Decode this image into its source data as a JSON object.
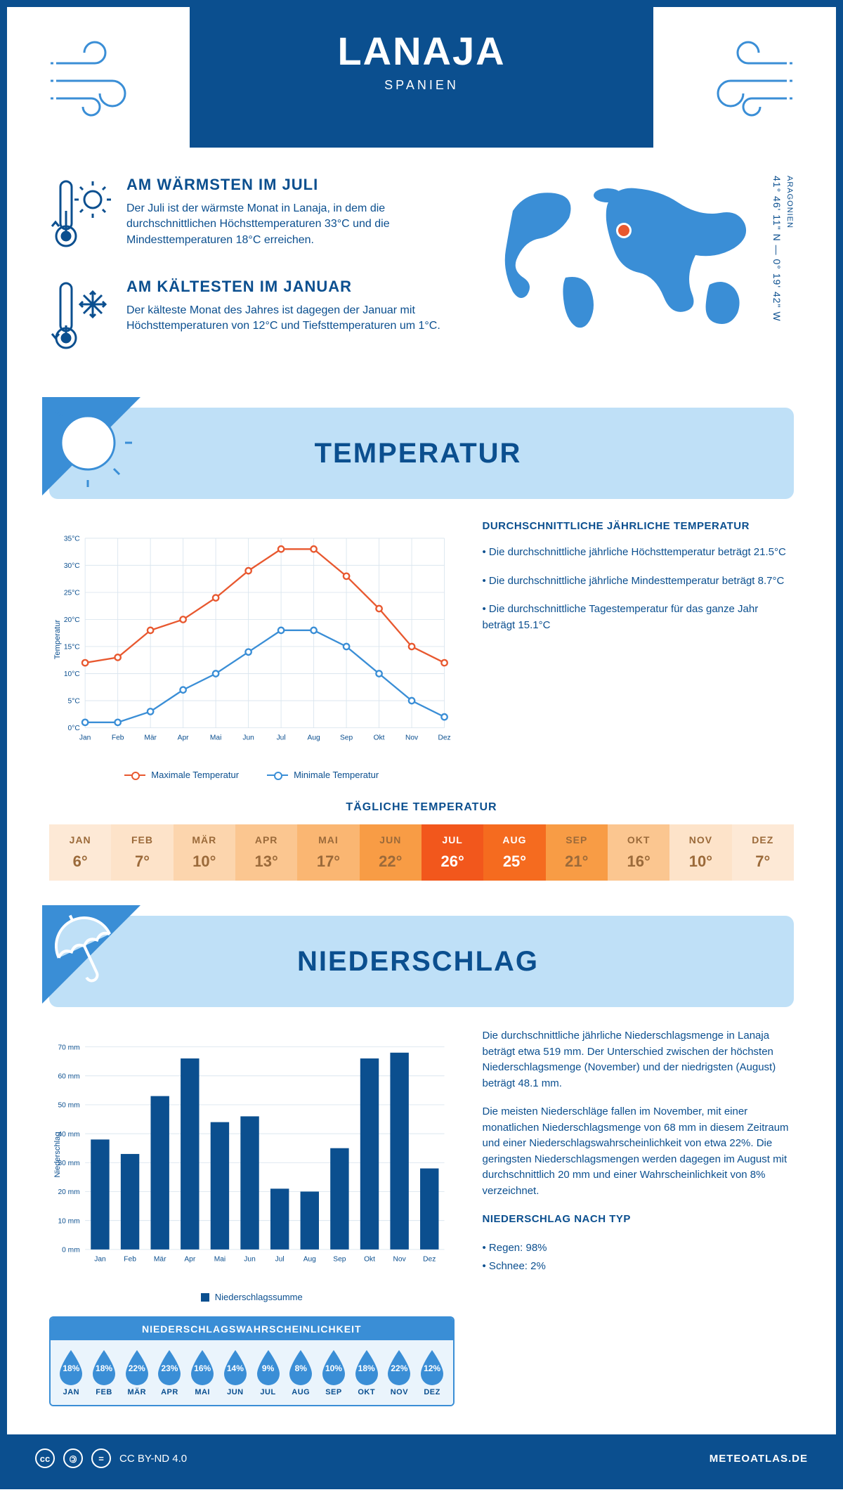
{
  "header": {
    "title": "LANAJA",
    "subtitle": "SPANIEN"
  },
  "intro": {
    "warm": {
      "title": "AM WÄRMSTEN IM JULI",
      "text": "Der Juli ist der wärmste Monat in Lanaja, in dem die durchschnittlichen Höchsttemperaturen 33°C und die Mindesttemperaturen 18°C erreichen."
    },
    "cold": {
      "title": "AM KÄLTESTEN IM JANUAR",
      "text": "Der kälteste Monat des Jahres ist dagegen der Januar mit Höchsttemperaturen von 12°C und Tiefsttemperaturen um 1°C."
    },
    "coords": "41° 46' 11\" N — 0° 19' 42\" W",
    "region": "ARAGONIEN"
  },
  "temperature": {
    "banner_title": "TEMPERATUR",
    "side_title": "DURCHSCHNITTLICHE JÄHRLICHE TEMPERATUR",
    "side_items": [
      "• Die durchschnittliche jährliche Höchsttemperatur beträgt 21.5°C",
      "• Die durchschnittliche jährliche Mindesttemperatur beträgt 8.7°C",
      "• Die durchschnittliche Tagestemperatur für das ganze Jahr beträgt 15.1°C"
    ],
    "chart": {
      "months": [
        "Jan",
        "Feb",
        "Mär",
        "Apr",
        "Mai",
        "Jun",
        "Jul",
        "Aug",
        "Sep",
        "Okt",
        "Nov",
        "Dez"
      ],
      "max": [
        12,
        13,
        18,
        20,
        24,
        29,
        33,
        33,
        28,
        22,
        15,
        12
      ],
      "min": [
        1,
        1,
        3,
        7,
        10,
        14,
        18,
        18,
        15,
        10,
        5,
        2
      ],
      "y_ticks": [
        0,
        5,
        10,
        15,
        20,
        25,
        30,
        35
      ],
      "ylabel": "Temperatur",
      "max_color": "#e8582f",
      "min_color": "#3a8ed6",
      "grid_color": "#dbe6ef",
      "point_fill": "#ffffff"
    },
    "legend_max": "Maximale Temperatur",
    "legend_min": "Minimale Temperatur",
    "daily_title": "TÄGLICHE TEMPERATUR",
    "daily": {
      "months": [
        "JAN",
        "FEB",
        "MÄR",
        "APR",
        "MAI",
        "JUN",
        "JUL",
        "AUG",
        "SEP",
        "OKT",
        "NOV",
        "DEZ"
      ],
      "values": [
        "6°",
        "7°",
        "10°",
        "13°",
        "17°",
        "22°",
        "26°",
        "25°",
        "21°",
        "16°",
        "10°",
        "7°"
      ],
      "bg": [
        "#fde9d6",
        "#fde3c9",
        "#fcd5ad",
        "#fbc690",
        "#fab672",
        "#f89c45",
        "#f2571c",
        "#f56b1f",
        "#f89c45",
        "#fbc690",
        "#fde3c9",
        "#fde9d6"
      ],
      "fg": [
        "#9b6a3a",
        "#9b6a3a",
        "#9b6a3a",
        "#9b6a3a",
        "#9b6a3a",
        "#9b6a3a",
        "#ffffff",
        "#ffffff",
        "#9b6a3a",
        "#9b6a3a",
        "#9b6a3a",
        "#9b6a3a"
      ]
    }
  },
  "precipitation": {
    "banner_title": "NIEDERSCHLAG",
    "chart": {
      "months": [
        "Jan",
        "Feb",
        "Mär",
        "Apr",
        "Mai",
        "Jun",
        "Jul",
        "Aug",
        "Sep",
        "Okt",
        "Nov",
        "Dez"
      ],
      "values": [
        38,
        33,
        53,
        66,
        44,
        46,
        21,
        20,
        35,
        66,
        68,
        28
      ],
      "y_ticks": [
        0,
        10,
        20,
        30,
        40,
        50,
        60,
        70
      ],
      "ylabel": "Niederschlag",
      "bar_color": "#0b4f8f",
      "grid_color": "#dbe6ef",
      "legend": "Niederschlagssumme"
    },
    "text1": "Die durchschnittliche jährliche Niederschlagsmenge in Lanaja beträgt etwa 519 mm. Der Unterschied zwischen der höchsten Niederschlagsmenge (November) und der niedrigsten (August) beträgt 48.1 mm.",
    "text2": "Die meisten Niederschläge fallen im November, mit einer monatlichen Niederschlagsmenge von 68 mm in diesem Zeitraum und einer Niederschlagswahrscheinlichkeit von etwa 22%. Die geringsten Niederschlagsmengen werden dagegen im August mit durchschnittlich 20 mm und einer Wahrscheinlichkeit von 8% verzeichnet.",
    "type_title": "NIEDERSCHLAG NACH TYP",
    "type_items": [
      "• Regen: 98%",
      "• Schnee: 2%"
    ],
    "prob": {
      "title": "NIEDERSCHLAGSWAHRSCHEINLICHKEIT",
      "months": [
        "JAN",
        "FEB",
        "MÄR",
        "APR",
        "MAI",
        "JUN",
        "JUL",
        "AUG",
        "SEP",
        "OKT",
        "NOV",
        "DEZ"
      ],
      "values": [
        "18%",
        "18%",
        "22%",
        "23%",
        "16%",
        "14%",
        "9%",
        "8%",
        "10%",
        "18%",
        "22%",
        "12%"
      ],
      "drop_color": "#3a8ed6"
    }
  },
  "footer": {
    "license": "CC BY-ND 4.0",
    "site": "METEOATLAS.DE"
  }
}
